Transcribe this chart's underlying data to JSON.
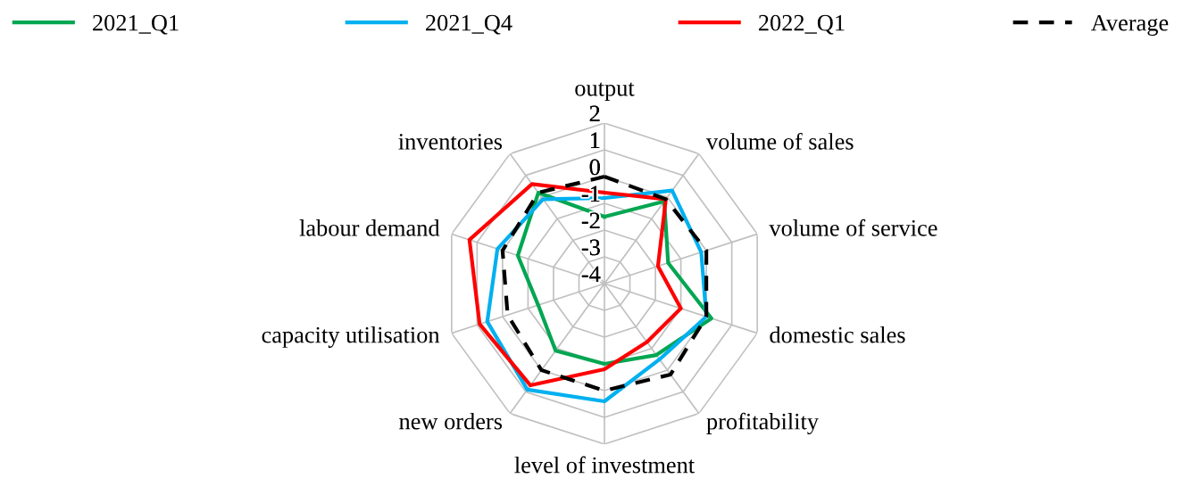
{
  "chart_data": {
    "type": "radar",
    "categories": [
      "output",
      "volume of sales",
      "volume of service",
      "domestic sales",
      "profitability",
      "level of investment",
      "new orders",
      "capacity utilisation",
      "labour demand",
      "inventories"
    ],
    "series": [
      {
        "name": "2021_Q1",
        "color": "#00a651",
        "values": [
          -1.5,
          -0.2,
          -1.5,
          0.2,
          -0.7,
          -1.0,
          -0.9,
          -1.4,
          -0.6,
          0.2
        ]
      },
      {
        "name": "2021_Q4",
        "color": "#00b0f0",
        "values": [
          -0.8,
          0.3,
          -0.2,
          0.0,
          -0.5,
          0.4,
          0.9,
          0.6,
          0.2,
          -0.1
        ]
      },
      {
        "name": "2022_Q1",
        "color": "#ff0000",
        "values": [
          -0.6,
          -0.1,
          -1.9,
          -1.0,
          -1.3,
          -0.8,
          0.7,
          0.9,
          1.3,
          0.6
        ]
      },
      {
        "name": "Average",
        "color": "#000000",
        "line_style": "dashed",
        "values": [
          0.0,
          -0.1,
          0.0,
          0.0,
          0.2,
          0.0,
          0.0,
          -0.2,
          0.0,
          0.2
        ]
      }
    ],
    "ylim": [
      -4,
      2
    ],
    "yticks": [
      2,
      1,
      0,
      -1,
      -2,
      -3,
      -4
    ],
    "grid": true,
    "legend": "top",
    "marker": "none"
  }
}
